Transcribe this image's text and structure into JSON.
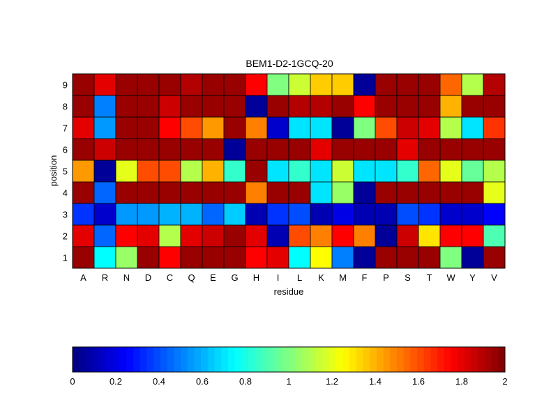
{
  "chart_data": {
    "type": "heatmap",
    "title": "BEM1-D2-1GCQ-20",
    "xlabel": "residue",
    "ylabel": "position",
    "x_categories": [
      "A",
      "R",
      "N",
      "D",
      "C",
      "Q",
      "E",
      "G",
      "H",
      "I",
      "L",
      "K",
      "M",
      "F",
      "P",
      "S",
      "T",
      "W",
      "Y",
      "V"
    ],
    "y_categories": [
      "1",
      "2",
      "3",
      "4",
      "5",
      "6",
      "7",
      "8",
      "9"
    ],
    "colormap": "jet",
    "color_range": [
      0,
      2
    ],
    "colorbar_ticks": [
      "0",
      "0.2",
      "0.4",
      "0.6",
      "0.8",
      "1",
      "1.2",
      "1.4",
      "1.6",
      "1.8",
      "2"
    ],
    "values": [
      [
        1.95,
        0.75,
        1.05,
        1.95,
        1.75,
        1.95,
        1.95,
        1.95,
        1.75,
        1.8,
        0.75,
        1.25,
        0.5,
        0.05,
        1.95,
        1.95,
        1.95,
        1.0,
        0.05,
        1.95
      ],
      [
        1.8,
        0.45,
        1.75,
        1.8,
        1.1,
        1.8,
        1.85,
        1.95,
        1.8,
        0.1,
        1.6,
        1.5,
        1.75,
        1.5,
        0.05,
        1.85,
        1.3,
        1.75,
        1.75,
        0.9
      ],
      [
        0.35,
        0.15,
        0.55,
        0.55,
        0.6,
        0.6,
        0.45,
        0.65,
        0.1,
        0.35,
        0.4,
        0.1,
        0.2,
        0.1,
        0.1,
        0.4,
        0.35,
        0.15,
        0.15,
        0.25
      ],
      [
        1.95,
        0.45,
        1.95,
        1.95,
        1.95,
        1.95,
        1.95,
        1.95,
        1.5,
        1.95,
        1.95,
        0.7,
        1.05,
        0.05,
        1.95,
        1.95,
        1.95,
        1.95,
        1.95,
        1.2
      ],
      [
        1.45,
        0.05,
        1.2,
        1.6,
        1.6,
        1.1,
        1.4,
        0.85,
        1.95,
        0.7,
        0.85,
        0.7,
        1.15,
        0.7,
        0.7,
        0.85,
        1.55,
        1.2,
        0.95,
        1.1
      ],
      [
        1.95,
        1.85,
        1.95,
        1.95,
        1.95,
        1.95,
        1.95,
        0.05,
        1.95,
        1.95,
        1.95,
        1.8,
        1.95,
        1.95,
        1.95,
        1.8,
        1.95,
        1.95,
        1.95,
        1.95
      ],
      [
        1.8,
        0.55,
        1.95,
        1.95,
        1.75,
        1.6,
        1.45,
        1.95,
        1.5,
        0.15,
        0.7,
        0.7,
        0.05,
        1.0,
        1.6,
        1.85,
        1.8,
        1.1,
        0.7,
        1.65
      ],
      [
        1.95,
        0.5,
        1.95,
        1.95,
        1.85,
        1.95,
        1.95,
        1.95,
        0.05,
        1.95,
        1.9,
        1.9,
        1.95,
        1.75,
        1.95,
        1.95,
        1.95,
        1.4,
        1.95,
        1.95
      ],
      [
        1.95,
        1.8,
        1.95,
        1.95,
        1.95,
        1.9,
        1.95,
        1.95,
        1.75,
        1.0,
        1.15,
        1.35,
        1.35,
        0.05,
        1.95,
        1.95,
        1.95,
        1.55,
        1.1,
        1.9
      ]
    ]
  }
}
